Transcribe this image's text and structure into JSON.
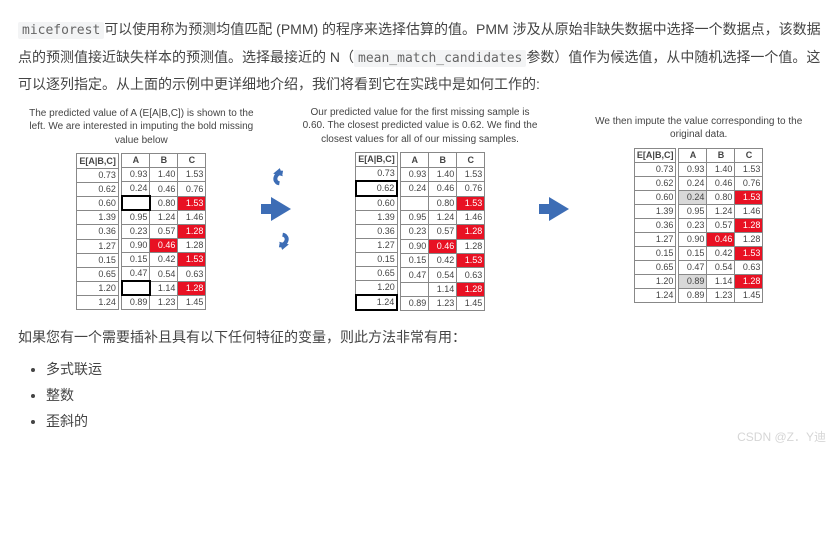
{
  "intro": {
    "code1": "miceforest",
    "t1": "可以使用称为预测均值匹配 (PMM) 的程序来选择估算的值。PMM 涉及从原始非缺失数据中选择一个数据点，该数据点的预测值接近缺失样本的预测值。选择最接近的 N（",
    "code2": "mean_match_candidates",
    "t2": "参数）值作为候选值，从中随机选择一个值。这可以逐列指定。从上面的示例中更详细地介绍，我们将看到它在实践中是如何工作的:"
  },
  "captions": {
    "p1": "The predicted value of A (E[A|B,C]) is shown to the left. We are interested in imputing the bold missing value below",
    "p2": "Our predicted value for the first missing sample is 0.60. The closest predicted value is 0.62. We find the closest values for all of our missing samples.",
    "p3": "We then impute the value corresponding to the original data."
  },
  "headers": {
    "e": "E[A|B,C]",
    "a": "A",
    "b": "B",
    "c": "C"
  },
  "rows": [
    {
      "e": "0.73",
      "a": "0.93",
      "b": "1.40",
      "c": "1.53"
    },
    {
      "e": "0.62",
      "a": "0.24",
      "b": "0.46",
      "c": "0.76"
    },
    {
      "e": "0.60",
      "a": "",
      "b": "0.80",
      "c": "1.53"
    },
    {
      "e": "1.39",
      "a": "0.95",
      "b": "1.24",
      "c": "1.46"
    },
    {
      "e": "0.36",
      "a": "0.23",
      "b": "0.57",
      "c": "1.28"
    },
    {
      "e": "1.27",
      "a": "0.90",
      "b": "0.46",
      "c": "1.28"
    },
    {
      "e": "0.15",
      "a": "0.15",
      "b": "0.42",
      "c": "1.53"
    },
    {
      "e": "0.65",
      "a": "0.47",
      "b": "0.54",
      "c": "0.63"
    },
    {
      "e": "1.20",
      "a": "",
      "b": "1.14",
      "c": "1.28"
    },
    {
      "e": "1.24",
      "a": "0.89",
      "b": "1.23",
      "c": "1.45"
    }
  ],
  "imputed": {
    "2": "0.24",
    "8": "0.89"
  },
  "redCells": [
    "2c",
    "4c",
    "5b",
    "6c",
    "8c"
  ],
  "greyCells": [
    "2a",
    "8a"
  ],
  "boldE_p2": [
    "1",
    "9"
  ],
  "sub": "如果您有一个需要插补且具有以下任何特征的变量，则此方法非常有用：",
  "bullets": [
    "多式联运",
    "整数",
    "歪斜的"
  ],
  "watermark": "CSDN @Z．Y迪"
}
